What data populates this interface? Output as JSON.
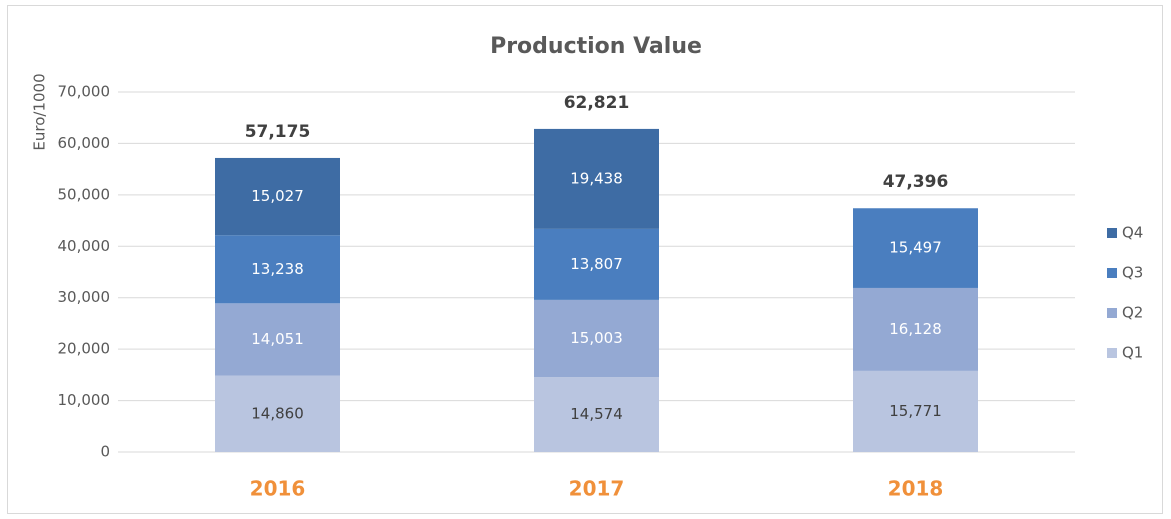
{
  "chart_data": {
    "type": "stacked_bar",
    "title": "Production Value",
    "y_label": "Euro/1000",
    "categories": [
      "2016",
      "2017",
      "2018"
    ],
    "series": [
      {
        "name": "Q1",
        "color": "#b9c5e0",
        "values": [
          14860,
          14574,
          15771
        ],
        "value_labels": [
          "14,860",
          "14,574",
          "15,771"
        ]
      },
      {
        "name": "Q2",
        "color": "#94a9d3",
        "values": [
          14051,
          15003,
          16128
        ],
        "value_labels": [
          "14,051",
          "15,003",
          "16,128"
        ]
      },
      {
        "name": "Q3",
        "color": "#4a7ebf",
        "values": [
          13238,
          13807,
          15497
        ],
        "value_labels": [
          "13,238",
          "13,807",
          "15,497"
        ]
      },
      {
        "name": "Q4",
        "color": "#3e6ca4",
        "values": [
          15027,
          19438,
          null
        ],
        "value_labels": [
          "15,027",
          "19,438",
          null
        ]
      }
    ],
    "total_labels": [
      "57,175",
      "62,821",
      "47,396"
    ],
    "ylim": [
      0,
      70000
    ],
    "yticks": [
      0,
      {
        "value": 10000,
        "label": "10,000"
      },
      {
        "value": 20000,
        "label": "20,000"
      },
      {
        "value": 30000,
        "label": "30,000"
      },
      {
        "value": 40000,
        "label": "40,000"
      },
      {
        "value": 50000,
        "label": "50,000"
      },
      {
        "value": 60000,
        "label": "60,000"
      },
      {
        "value": 70000,
        "label": "70,000"
      }
    ],
    "grid": true,
    "legend": "right"
  }
}
